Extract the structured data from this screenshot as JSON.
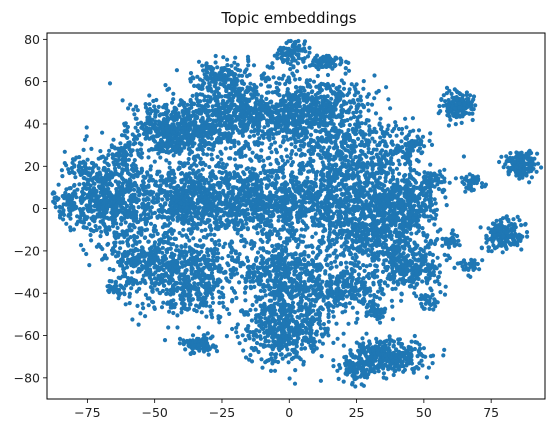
{
  "chart_data": {
    "type": "scatter",
    "title": "Topic embeddings",
    "xlabel": "",
    "ylabel": "",
    "xlim": [
      -90,
      95
    ],
    "ylim": [
      -90,
      83
    ],
    "xticks": [
      -75,
      -50,
      -25,
      0,
      25,
      50,
      75
    ],
    "yticks": [
      -80,
      -60,
      -40,
      -20,
      0,
      20,
      40,
      60,
      80
    ],
    "grid": false,
    "legend": "none",
    "point_color": "#1f77b4",
    "clusters": [
      {
        "cx": -40,
        "cy": 37,
        "sx": 9,
        "sy": 7,
        "n": 650
      },
      {
        "cx": -15,
        "cy": 45,
        "sx": 12,
        "sy": 9,
        "n": 650
      },
      {
        "cx": 10,
        "cy": 45,
        "sx": 11,
        "sy": 9,
        "n": 600
      },
      {
        "cx": -38,
        "cy": 3,
        "sx": 13,
        "sy": 9,
        "n": 800
      },
      {
        "cx": -68,
        "cy": 5,
        "sx": 7,
        "sy": 10,
        "n": 500
      },
      {
        "cx": -82,
        "cy": 3,
        "sx": 3,
        "sy": 4,
        "n": 80
      },
      {
        "cx": -78,
        "cy": 19,
        "sx": 3,
        "sy": 2,
        "n": 40
      },
      {
        "cx": -10,
        "cy": 5,
        "sx": 12,
        "sy": 10,
        "n": 700
      },
      {
        "cx": 18,
        "cy": 5,
        "sx": 10,
        "sy": 10,
        "n": 500
      },
      {
        "cx": 42,
        "cy": 3,
        "sx": 7,
        "sy": 7,
        "n": 420
      },
      {
        "cx": 28,
        "cy": 25,
        "sx": 10,
        "sy": 8,
        "n": 320
      },
      {
        "cx": 30,
        "cy": -12,
        "sx": 9,
        "sy": 8,
        "n": 380
      },
      {
        "cx": 45,
        "cy": -27,
        "sx": 6,
        "sy": 6,
        "n": 300
      },
      {
        "cx": -38,
        "cy": -32,
        "sx": 11,
        "sy": 9,
        "n": 600
      },
      {
        "cx": -55,
        "cy": -22,
        "sx": 6,
        "sy": 6,
        "n": 200
      },
      {
        "cx": -2,
        "cy": -55,
        "sx": 8,
        "sy": 9,
        "n": 550
      },
      {
        "cx": -2,
        "cy": -30,
        "sx": 10,
        "sy": 9,
        "n": 450
      },
      {
        "cx": 20,
        "cy": -38,
        "sx": 8,
        "sy": 7,
        "n": 300
      },
      {
        "cx": 37,
        "cy": -70,
        "sx": 7,
        "sy": 4,
        "n": 320
      },
      {
        "cx": 25,
        "cy": -75,
        "sx": 3,
        "sy": 4,
        "n": 120
      },
      {
        "cx": 63,
        "cy": 48,
        "sx": 3,
        "sy": 3,
        "n": 170
      },
      {
        "cx": 86,
        "cy": 21,
        "sx": 3,
        "sy": 3,
        "n": 170
      },
      {
        "cx": 80,
        "cy": -12,
        "sx": 3.5,
        "sy": 3.5,
        "n": 190
      },
      {
        "cx": -34,
        "cy": -64,
        "sx": 3,
        "sy": 2,
        "n": 110
      },
      {
        "cx": -25,
        "cy": 62,
        "sx": 6,
        "sy": 4,
        "n": 150
      },
      {
        "cx": 1,
        "cy": 74,
        "sx": 3,
        "sy": 3,
        "n": 80
      },
      {
        "cx": 14,
        "cy": 69,
        "sx": 4,
        "sy": 2,
        "n": 70
      },
      {
        "cx": 45,
        "cy": 30,
        "sx": 3,
        "sy": 3,
        "n": 60
      },
      {
        "cx": 68,
        "cy": 12,
        "sx": 2,
        "sy": 2,
        "n": 40
      },
      {
        "cx": 54,
        "cy": 12,
        "sx": 3,
        "sy": 3,
        "n": 60
      },
      {
        "cx": 66,
        "cy": -27,
        "sx": 2,
        "sy": 2,
        "n": 35
      },
      {
        "cx": 52,
        "cy": -44,
        "sx": 2,
        "sy": 2,
        "n": 35
      },
      {
        "cx": 60,
        "cy": -15,
        "sx": 2,
        "sy": 2,
        "n": 30
      },
      {
        "cx": 32,
        "cy": -49,
        "sx": 2,
        "sy": 2,
        "n": 40
      },
      {
        "cx": -64,
        "cy": -38,
        "sx": 2,
        "sy": 2,
        "n": 40
      },
      {
        "cx": -62,
        "cy": 25,
        "sx": 4,
        "sy": 3,
        "n": 60
      }
    ]
  }
}
